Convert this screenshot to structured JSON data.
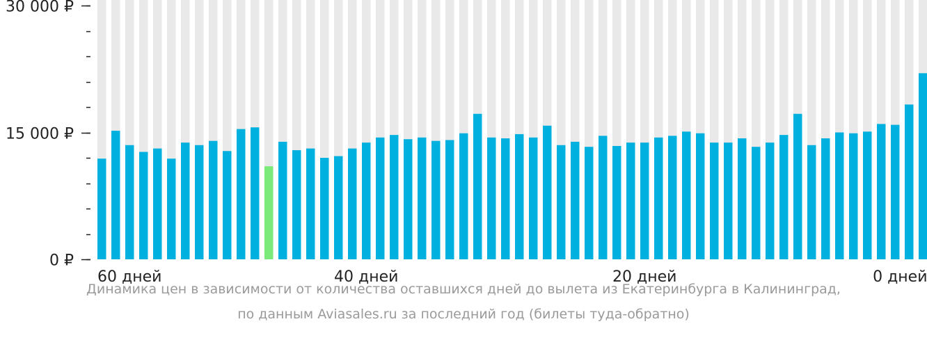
{
  "chart_data": {
    "type": "bar",
    "colors": {
      "bar": "#00b0de",
      "highlight": "#7bea7b",
      "track": "#e9e9e9",
      "axis": "#222222"
    },
    "ylim": [
      0,
      30000
    ],
    "y_tick_labels": [
      "30 000 ₽",
      "15 000 ₽",
      "0 ₽"
    ],
    "y_tick_values": [
      30000,
      15000,
      0
    ],
    "y_minor_step": 3000,
    "x_tick_labels": [
      {
        "label": "60 дней",
        "bar_index": 0
      },
      {
        "label": "40 дней",
        "bar_index": 19
      },
      {
        "label": "20 дней",
        "bar_index": 39
      },
      {
        "label": "0 дней",
        "bar_index": 59
      }
    ],
    "highlight_index": 12,
    "values": [
      11900,
      15200,
      13500,
      12700,
      13100,
      11900,
      13800,
      13500,
      14000,
      12800,
      15400,
      15600,
      11000,
      13900,
      12900,
      13100,
      12000,
      12200,
      13100,
      13800,
      14400,
      14700,
      14200,
      14400,
      14000,
      14100,
      14900,
      17200,
      14400,
      14300,
      14800,
      14400,
      15800,
      13500,
      13900,
      13300,
      14600,
      13400,
      13800,
      13800,
      14400,
      14600,
      15100,
      14900,
      13800,
      13800,
      14300,
      13300,
      13800,
      14700,
      17200,
      13500,
      14300,
      15000,
      14900,
      15100,
      16000,
      15900,
      18300,
      22000
    ]
  },
  "caption": {
    "line1": "Динамика цен в зависимости от количества оставшихся дней до вылета из Екатеринбурга в Калининград,",
    "line2": "по данным Aviasales.ru за последний год (билеты туда-обратно)"
  }
}
